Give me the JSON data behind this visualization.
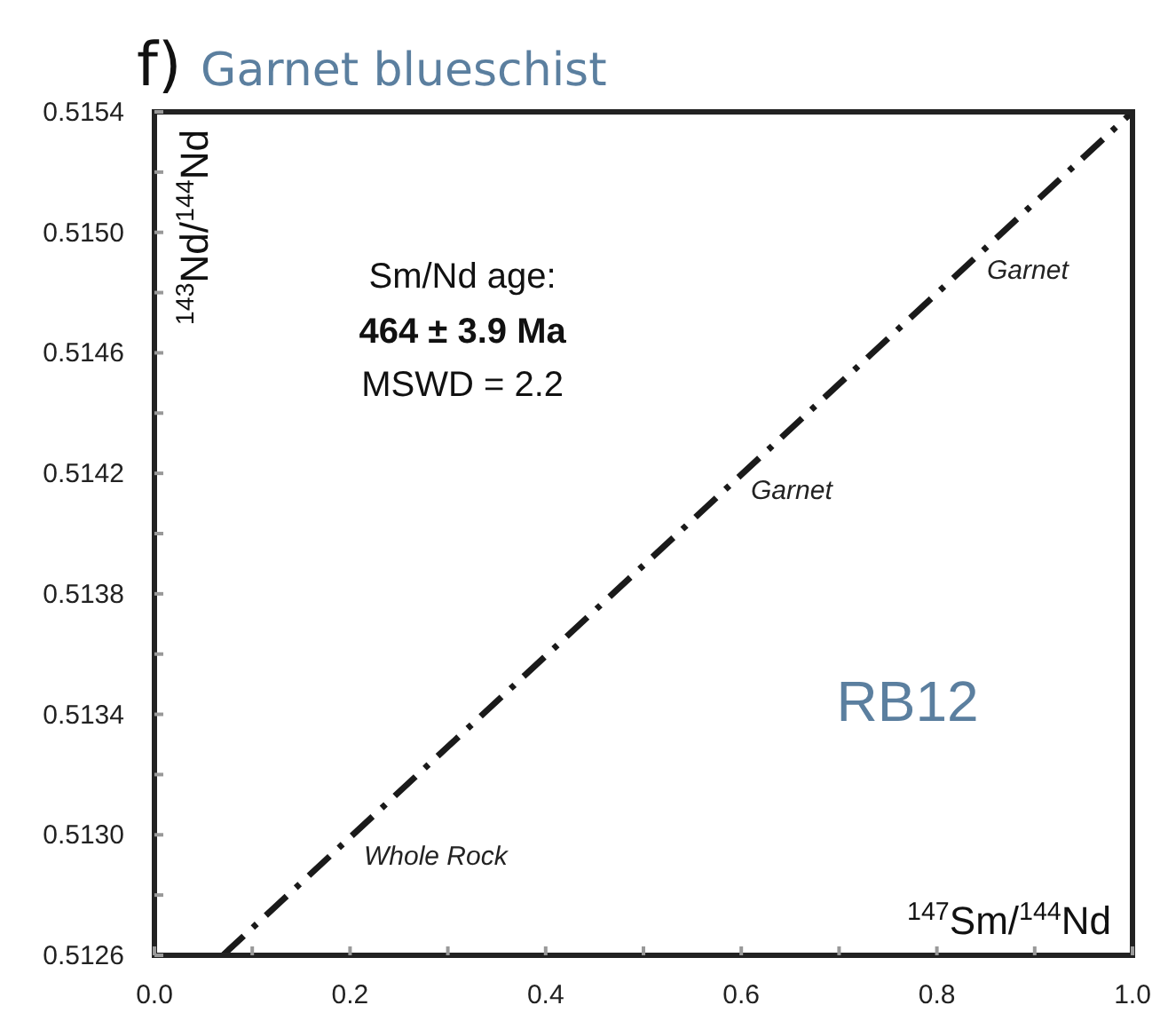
{
  "chart_data": {
    "type": "line",
    "title": "f) Garnet blueschist",
    "xlabel": "$^{147}$Sm/$^{144}$Nd",
    "ylabel": "$^{143}$Nd/$^{144}$Nd",
    "xlim": [
      0,
      1
    ],
    "xticks": [
      {
        "value": 0,
        "label": "0.0"
      },
      {
        "value": 0.1,
        "label": null
      },
      {
        "value": 0.2,
        "label": "0.2"
      },
      {
        "value": 0.3,
        "label": null
      },
      {
        "value": 0.4,
        "label": "0.4"
      },
      {
        "value": 0.5,
        "label": null
      },
      {
        "value": 0.6,
        "label": "0.6"
      },
      {
        "value": 0.7,
        "label": null
      },
      {
        "value": 0.8,
        "label": "0.8"
      },
      {
        "value": 0.9,
        "label": null
      },
      {
        "value": 1,
        "label": "1.0"
      }
    ],
    "ylim": [
      0.5126,
      0.5154
    ],
    "yticks": [
      {
        "value": 0.5126,
        "label": "0.5126"
      },
      {
        "value": 0.5128,
        "label": null
      },
      {
        "value": 0.513,
        "label": "0.5130"
      },
      {
        "value": 0.5132,
        "label": null
      },
      {
        "value": 0.5134,
        "label": "0.5134"
      },
      {
        "value": 0.5136,
        "label": null
      },
      {
        "value": 0.5138,
        "label": "0.5138"
      },
      {
        "value": 0.514,
        "label": null
      },
      {
        "value": 0.5142,
        "label": "0.5142"
      },
      {
        "value": 0.5144,
        "label": null
      },
      {
        "value": 0.5146,
        "label": "0.5146"
      },
      {
        "value": 0.5148,
        "label": null
      },
      {
        "value": 0.515,
        "label": "0.5150"
      },
      {
        "value": 0.5152,
        "label": null
      },
      {
        "value": 0.5154,
        "label": "0.5154"
      }
    ],
    "series": [
      {
        "type": "line",
        "color": "#1a1a1a",
        "x": [
          0.07,
          1.0
        ],
        "values": [
          0.5126,
          0.5154
        ],
        "line_style": "dashed"
      }
    ],
    "marker": "none",
    "grid": false,
    "annotations": [
      "Sm/Nd age:",
      "464 ± 3.9 Ma",
      "MSWD = 2.2",
      "RB12",
      "Whole Rock",
      "Garnet",
      "Garnet"
    ]
  }
}
